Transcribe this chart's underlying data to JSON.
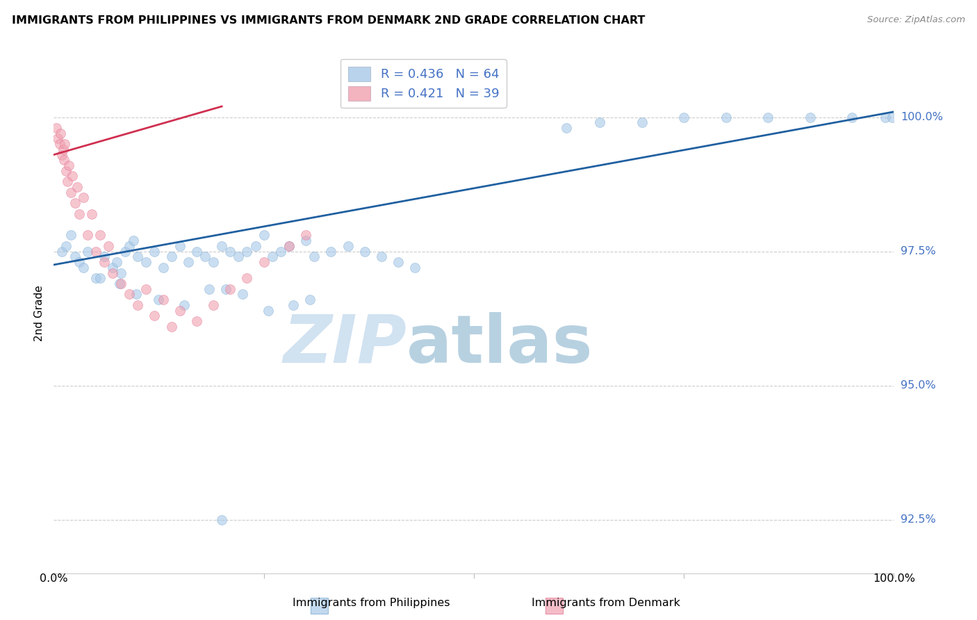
{
  "title": "IMMIGRANTS FROM PHILIPPINES VS IMMIGRANTS FROM DENMARK 2ND GRADE CORRELATION CHART",
  "source": "Source: ZipAtlas.com",
  "ylabel": "2nd Grade",
  "blue_color": "#a8c8e8",
  "pink_color": "#f0a0b0",
  "blue_edge_color": "#7aaad0",
  "pink_edge_color": "#e07090",
  "blue_trend_color": "#2060a0",
  "pink_trend_color": "#d03050",
  "blue_R": 0.436,
  "blue_N": 64,
  "pink_R": 0.421,
  "pink_N": 39,
  "ytick_values": [
    92.5,
    95.0,
    97.5,
    100.0
  ],
  "ytick_labels": [
    "92.5%",
    "95.0%",
    "97.5%",
    "100.0%"
  ],
  "xlim": [
    0.0,
    100.0
  ],
  "ylim": [
    91.5,
    101.2
  ],
  "legend_label_blue": "Immigrants from Philippines",
  "legend_label_pink": "Immigrants from Denmark",
  "blue_x": [
    1.0,
    1.5,
    2.0,
    2.5,
    3.0,
    3.5,
    4.0,
    5.0,
    6.0,
    7.0,
    7.5,
    8.0,
    8.5,
    9.0,
    9.5,
    10.0,
    11.0,
    12.0,
    13.0,
    14.0,
    15.0,
    16.0,
    17.0,
    18.0,
    19.0,
    20.0,
    21.0,
    22.0,
    23.0,
    24.0,
    25.0,
    26.0,
    27.0,
    28.0,
    30.0,
    31.0,
    33.0,
    35.0,
    37.0,
    39.0,
    41.0,
    43.0,
    20.5,
    30.5,
    25.5,
    28.5,
    22.5,
    18.5,
    15.5,
    12.5,
    9.8,
    7.8,
    5.5,
    61.0,
    65.0,
    70.0,
    75.0,
    80.0,
    85.0,
    90.0,
    95.0,
    99.0,
    99.8,
    20.0
  ],
  "blue_y": [
    97.5,
    97.6,
    97.8,
    97.4,
    97.3,
    97.2,
    97.5,
    97.0,
    97.4,
    97.2,
    97.3,
    97.1,
    97.5,
    97.6,
    97.7,
    97.4,
    97.3,
    97.5,
    97.2,
    97.4,
    97.6,
    97.3,
    97.5,
    97.4,
    97.3,
    97.6,
    97.5,
    97.4,
    97.5,
    97.6,
    97.8,
    97.4,
    97.5,
    97.6,
    97.7,
    97.4,
    97.5,
    97.6,
    97.5,
    97.4,
    97.3,
    97.2,
    96.8,
    96.6,
    96.4,
    96.5,
    96.7,
    96.8,
    96.5,
    96.6,
    96.7,
    96.9,
    97.0,
    99.8,
    99.9,
    99.9,
    100.0,
    100.0,
    100.0,
    100.0,
    100.0,
    100.0,
    100.0,
    92.5
  ],
  "pink_x": [
    0.3,
    0.5,
    0.7,
    0.8,
    1.0,
    1.1,
    1.2,
    1.3,
    1.5,
    1.6,
    1.8,
    2.0,
    2.2,
    2.5,
    2.8,
    3.0,
    3.5,
    4.0,
    4.5,
    5.0,
    5.5,
    6.0,
    6.5,
    7.0,
    8.0,
    9.0,
    10.0,
    11.0,
    12.0,
    13.0,
    14.0,
    15.0,
    17.0,
    19.0,
    21.0,
    23.0,
    25.0,
    28.0,
    30.0
  ],
  "pink_y": [
    99.8,
    99.6,
    99.5,
    99.7,
    99.3,
    99.4,
    99.2,
    99.5,
    99.0,
    98.8,
    99.1,
    98.6,
    98.9,
    98.4,
    98.7,
    98.2,
    98.5,
    97.8,
    98.2,
    97.5,
    97.8,
    97.3,
    97.6,
    97.1,
    96.9,
    96.7,
    96.5,
    96.8,
    96.3,
    96.6,
    96.1,
    96.4,
    96.2,
    96.5,
    96.8,
    97.0,
    97.3,
    97.6,
    97.8
  ]
}
